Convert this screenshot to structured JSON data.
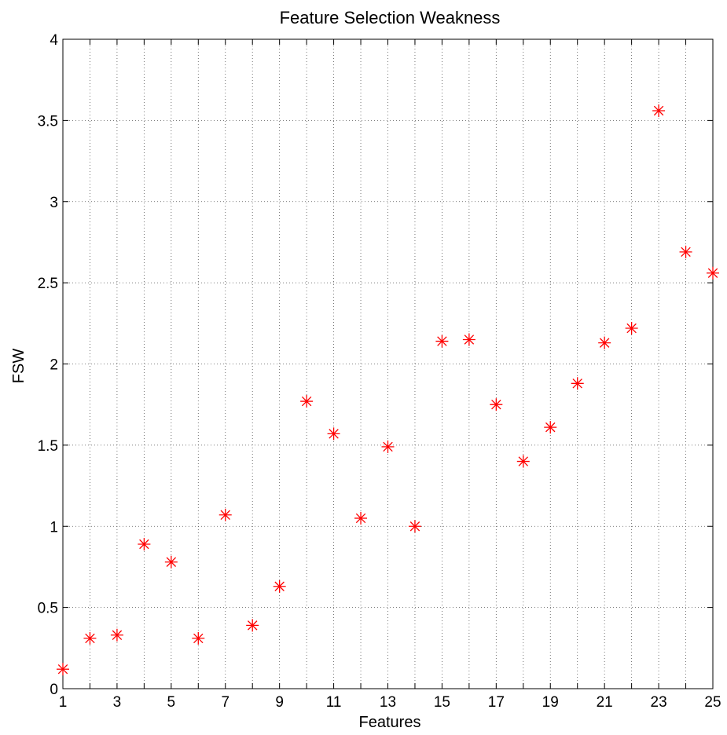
{
  "chart_data": {
    "type": "scatter",
    "title": "Feature Selection Weakness",
    "xlabel": "Features",
    "ylabel": "FSW",
    "xlim": [
      1,
      25
    ],
    "ylim": [
      0,
      4
    ],
    "xticks": [
      1,
      3,
      5,
      7,
      9,
      11,
      13,
      15,
      17,
      19,
      21,
      23,
      25
    ],
    "yticks": [
      0,
      0.5,
      1,
      1.5,
      2,
      2.5,
      3,
      3.5,
      4
    ],
    "ytick_labels": [
      "0",
      "0.5",
      "1",
      "1.5",
      "2",
      "2.5",
      "3",
      "3.5",
      "4"
    ],
    "grid": true,
    "marker": "asterisk",
    "marker_color": "#ff0000",
    "series": [
      {
        "x": [
          1,
          2,
          3,
          4,
          5,
          6,
          7,
          8,
          9,
          10,
          11,
          12,
          13,
          14,
          15,
          16,
          17,
          18,
          19,
          20,
          21,
          22,
          23,
          24,
          25
        ],
        "y": [
          0.12,
          0.31,
          0.33,
          0.89,
          0.78,
          0.31,
          1.07,
          0.39,
          0.63,
          1.77,
          1.57,
          1.05,
          1.49,
          1.0,
          2.14,
          2.15,
          1.75,
          1.4,
          1.61,
          1.88,
          2.13,
          2.22,
          3.56,
          2.69,
          2.56
        ]
      }
    ]
  }
}
